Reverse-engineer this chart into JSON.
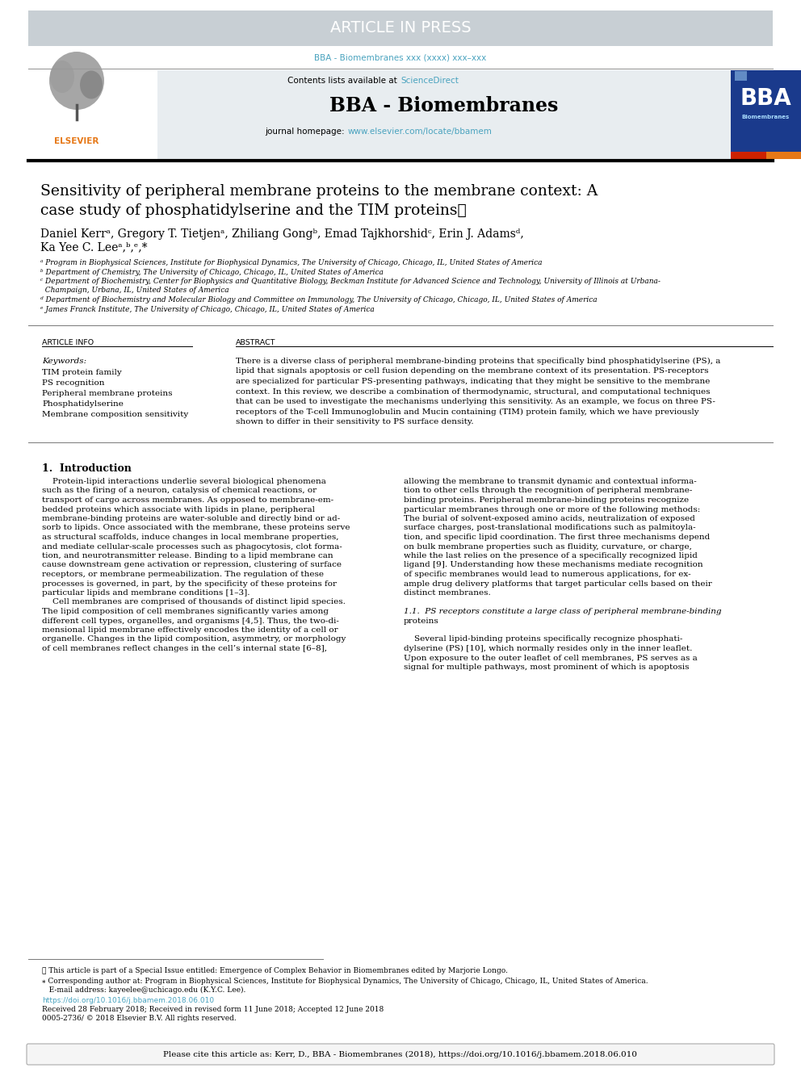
{
  "article_in_press_bg": "#c8cfd4",
  "article_in_press_text": "ARTICLE IN PRESS",
  "journal_ref": "BBA - Biomembranes xxx (xxxx) xxx–xxx",
  "journal_ref_color": "#4aa3bf",
  "contents_text": "Contents lists available at ",
  "sciencedirect_text": "ScienceDirect",
  "sciencedirect_color": "#4aa3bf",
  "journal_name": "BBA - Biomembranes",
  "journal_homepage_text": "journal homepage: ",
  "journal_homepage_url": "www.elsevier.com/locate/bbamem",
  "journal_homepage_url_color": "#4aa3bf",
  "header_bg": "#e8edf0",
  "title": "Sensitivity of peripheral membrane proteins to the membrane context: A\ncase study of phosphatidylserine and the TIM proteins★",
  "authors_line1": "Daniel Kerrᵃ, Gregory T. Tietjenᵃ, Zhiliang Gongᵇ, Emad Tajkhorshidᶜ, Erin J. Adamsᵈ,",
  "authors_line2": "Ka Yee C. Leeᵃ,ᵇ,ᵉ,*",
  "affiliations": [
    "ᵃ Program in Biophysical Sciences, Institute for Biophysical Dynamics, The University of Chicago, Chicago, IL, United States of America",
    "ᵇ Department of Chemistry, The University of Chicago, Chicago, IL, United States of America",
    "ᶜ Department of Biochemistry, Center for Biophysics and Quantitative Biology, Beckman Institute for Advanced Science and Technology, University of Illinois at Urbana-",
    "  Champaign, Urbana, IL, United States of America",
    "ᵈ Department of Biochemistry and Molecular Biology and Committee on Immunology, The University of Chicago, Chicago, IL, United States of America",
    "ᵉ James Franck Institute, The University of Chicago, Chicago, IL, United States of America"
  ],
  "article_info_label": "ARTICLE INFO",
  "abstract_label": "ABSTRACT",
  "keywords_label": "Keywords:",
  "keywords": [
    "TIM protein family",
    "PS recognition",
    "Peripheral membrane proteins",
    "Phosphatidylserine",
    "Membrane composition sensitivity"
  ],
  "abstract_text": [
    "There is a diverse class of peripheral membrane-binding proteins that specifically bind phosphatidylserine (PS), a",
    "lipid that signals apoptosis or cell fusion depending on the membrane context of its presentation. PS-receptors",
    "are specialized for particular PS-presenting pathways, indicating that they might be sensitive to the membrane",
    "context. In this review, we describe a combination of thermodynamic, structural, and computational techniques",
    "that can be used to investigate the mechanisms underlying this sensitivity. As an example, we focus on three PS-",
    "receptors of the T-cell Immunoglobulin and Mucin containing (TIM) protein family, which we have previously",
    "shown to differ in their sensitivity to PS surface density."
  ],
  "section1_title": "1.  Introduction",
  "section1_col1": [
    "    Protein-lipid interactions underlie several biological phenomena",
    "such as the firing of a neuron, catalysis of chemical reactions, or",
    "transport of cargo across membranes. As opposed to membrane-em-",
    "bedded proteins which associate with lipids in plane, peripheral",
    "membrane-binding proteins are water-soluble and directly bind or ad-",
    "sorb to lipids. Once associated with the membrane, these proteins serve",
    "as structural scaffolds, induce changes in local membrane properties,",
    "and mediate cellular-scale processes such as phagocytosis, clot forma-",
    "tion, and neurotransmitter release. Binding to a lipid membrane can",
    "cause downstream gene activation or repression, clustering of surface",
    "receptors, or membrane permeabilization. The regulation of these",
    "processes is governed, in part, by the specificity of these proteins for",
    "particular lipids and membrane conditions [1–3].",
    "    Cell membranes are comprised of thousands of distinct lipid species.",
    "The lipid composition of cell membranes significantly varies among",
    "different cell types, organelles, and organisms [4,5]. Thus, the two-di-",
    "mensional lipid membrane effectively encodes the identity of a cell or",
    "organelle. Changes in the lipid composition, asymmetry, or morphology",
    "of cell membranes reflect changes in the cell’s internal state [6–8],"
  ],
  "section1_col2": [
    "allowing the membrane to transmit dynamic and contextual informa-",
    "tion to other cells through the recognition of peripheral membrane-",
    "binding proteins. Peripheral membrane-binding proteins recognize",
    "particular membranes through one or more of the following methods:",
    "The burial of solvent-exposed amino acids, neutralization of exposed",
    "surface charges, post-translational modifications such as palmitoyla-",
    "tion, and specific lipid coordination. The first three mechanisms depend",
    "on bulk membrane properties such as fluidity, curvature, or charge,",
    "while the last relies on the presence of a specifically recognized lipid",
    "ligand [9]. Understanding how these mechanisms mediate recognition",
    "of specific membranes would lead to numerous applications, for ex-",
    "ample drug delivery platforms that target particular cells based on their",
    "distinct membranes.",
    "",
    "1.1.  PS receptors constitute a large class of peripheral membrane-binding",
    "proteins",
    "",
    "    Several lipid-binding proteins specifically recognize phosphati-",
    "dylserine (PS) [10], which normally resides only in the inner leaflet.",
    "Upon exposure to the outer leaflet of cell membranes, PS serves as a",
    "signal for multiple pathways, most prominent of which is apoptosis"
  ],
  "footnote_star": "★ This article is part of a Special Issue entitled: Emergence of Complex Behavior in Biomembranes edited by Marjorie Longo.",
  "footnote_corresponding1": "⁎ Corresponding author at: Program in Biophysical Sciences, Institute for Biophysical Dynamics, The University of Chicago, Chicago, IL, United States of America.",
  "footnote_corresponding2": "   E-mail address: kayeelee@uchicago.edu (K.Y.C. Lee).",
  "footnote_doi": "https://doi.org/10.1016/j.bbamem.2018.06.010",
  "footnote_doi_color": "#4aa3bf",
  "footnote_received": "Received 28 February 2018; Received in revised form 11 June 2018; Accepted 12 June 2018",
  "footnote_issn": "0005-2736/ © 2018 Elsevier B.V. All rights reserved.",
  "citation_box": "Please cite this article as: Kerr, D., BBA - Biomembranes (2018), https://doi.org/10.1016/j.bbamem.2018.06.010",
  "citation_box_bg": "#f5f5f5",
  "citation_box_border": "#aaaaaa"
}
